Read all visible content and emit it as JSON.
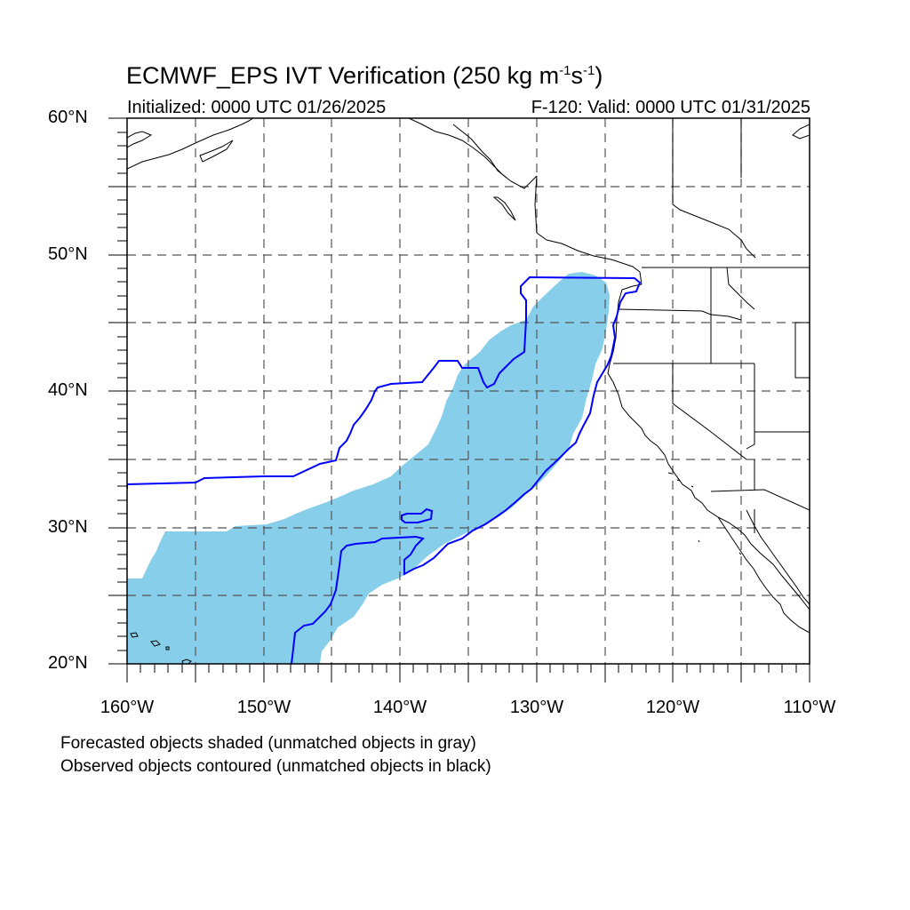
{
  "title": {
    "main": "ECMWF_EPS IVT Verification (250 kg m",
    "sup1": "-1",
    "mid": "s",
    "sup2": "-1",
    "end": ")"
  },
  "subtitle": {
    "left": "Initialized: 0000 UTC 01/26/2025",
    "right": "F-120: Valid: 0000 UTC 01/31/2025"
  },
  "map": {
    "lon_range": [
      -160,
      -110
    ],
    "lat_range": [
      20,
      60
    ],
    "lat_labels": [
      "60°N",
      "50°N",
      "40°N",
      "30°N",
      "20°N"
    ],
    "lon_labels": [
      "160°W",
      "150°W",
      "140°W",
      "130°W",
      "120°W",
      "110°W"
    ],
    "forecast_fill_color": "#87ceeb",
    "observed_contour_color": "#0000ff"
  },
  "legend": {
    "line1": "Forecasted objects shaded (unmatched objects in gray)",
    "line2": "Observed objects contoured (unmatched objects in black)"
  }
}
